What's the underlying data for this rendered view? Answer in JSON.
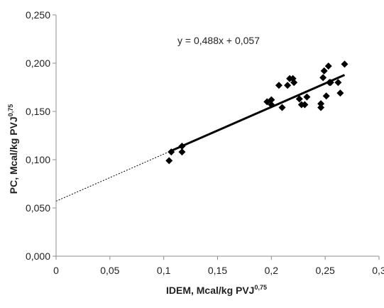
{
  "chart_data": {
    "type": "scatter",
    "title": "",
    "xlabel": "IDEM, Mcal/kg PVJ",
    "xlabel_sup": "0,75",
    "ylabel": "PC, Mcal/kg PVJ",
    "ylabel_sup": "0,75",
    "xlim": [
      0,
      0.3
    ],
    "ylim": [
      0,
      0.25
    ],
    "xticks": [
      0,
      0.05,
      0.1,
      0.15,
      0.2,
      0.25,
      0.3
    ],
    "xtick_labels": [
      "0",
      "0,05",
      "0,1",
      "0,15",
      "0,2",
      "0,25",
      "0,3"
    ],
    "yticks": [
      0,
      0.05,
      0.1,
      0.15,
      0.2,
      0.25
    ],
    "ytick_labels": [
      "0,000",
      "0,050",
      "0,100",
      "0,150",
      "0,200",
      "0,250"
    ],
    "grid": false,
    "legend": "none",
    "annotation": "y = 0,488x + 0,057",
    "series": [
      {
        "marker": "diamond",
        "color": "#000000",
        "points": [
          {
            "x": 0.105,
            "y": 0.099
          },
          {
            "x": 0.107,
            "y": 0.108
          },
          {
            "x": 0.117,
            "y": 0.108
          },
          {
            "x": 0.117,
            "y": 0.114
          },
          {
            "x": 0.196,
            "y": 0.16
          },
          {
            "x": 0.2,
            "y": 0.162
          },
          {
            "x": 0.2,
            "y": 0.157
          },
          {
            "x": 0.207,
            "y": 0.177
          },
          {
            "x": 0.21,
            "y": 0.154
          },
          {
            "x": 0.215,
            "y": 0.177
          },
          {
            "x": 0.217,
            "y": 0.184
          },
          {
            "x": 0.22,
            "y": 0.184
          },
          {
            "x": 0.221,
            "y": 0.18
          },
          {
            "x": 0.226,
            "y": 0.163
          },
          {
            "x": 0.228,
            "y": 0.157
          },
          {
            "x": 0.231,
            "y": 0.157
          },
          {
            "x": 0.233,
            "y": 0.165
          },
          {
            "x": 0.246,
            "y": 0.158
          },
          {
            "x": 0.246,
            "y": 0.154
          },
          {
            "x": 0.248,
            "y": 0.185
          },
          {
            "x": 0.249,
            "y": 0.192
          },
          {
            "x": 0.251,
            "y": 0.166
          },
          {
            "x": 0.253,
            "y": 0.197
          },
          {
            "x": 0.254,
            "y": 0.18
          },
          {
            "x": 0.255,
            "y": 0.18
          },
          {
            "x": 0.262,
            "y": 0.18
          },
          {
            "x": 0.264,
            "y": 0.169
          },
          {
            "x": 0.268,
            "y": 0.199
          }
        ]
      }
    ],
    "trendline": {
      "slope": 0.488,
      "intercept": 0.057,
      "solid_range": [
        0.105,
        0.268
      ],
      "dashed_range": [
        0,
        0.105
      ],
      "color": "#000000"
    }
  }
}
